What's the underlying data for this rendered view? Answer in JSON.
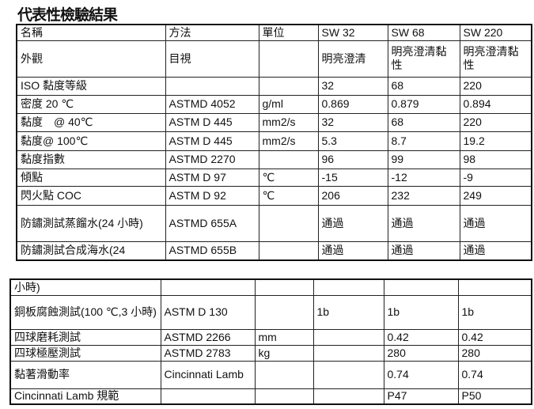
{
  "title": "代表性檢驗結果",
  "table1": {
    "header": [
      "名稱",
      "方法",
      "單位",
      "SW 32",
      "SW 68",
      "SW 220"
    ],
    "rows": [
      [
        "外觀",
        "目視",
        "",
        "明亮澄清",
        "明亮澄清黏性",
        "明亮澄清黏性"
      ],
      [
        "ISO 黏度等級",
        "",
        "",
        "32",
        "68",
        "220"
      ],
      [
        "密度 20 ℃",
        "ASTMD 4052",
        "g/ml",
        "0.869",
        "0.879",
        "0.894"
      ],
      [
        "黏度　@ 40℃",
        "ASTM D 445",
        "mm2/s",
        "32",
        "68",
        "220"
      ],
      [
        "黏度@ 100℃",
        "ASTM D 445",
        "mm2/s",
        "5.3",
        "8.7",
        "19.2"
      ],
      [
        "黏度指數",
        "ASTMD 2270",
        "",
        "96",
        "99",
        "98"
      ],
      [
        "傾點",
        "ASTM D 97",
        "℃",
        "-15",
        "-12",
        "-9"
      ],
      [
        "閃火點 COC",
        "ASTM D 92",
        "℃",
        "206",
        "232",
        "249"
      ],
      [
        "防鏽測試蒸餾水(24 小時)",
        "ASTMD 655A",
        "",
        "通過",
        "通過",
        "通過"
      ],
      [
        "防鏽測試合成海水(24",
        "ASTMD 655B",
        "",
        "通過",
        "通過",
        "通過"
      ]
    ]
  },
  "table2": {
    "rows": [
      [
        "小時)",
        "",
        "",
        "",
        "",
        ""
      ],
      [
        "銅板腐蝕測試(100 ℃,3 小時)",
        "ASTM D 130",
        "",
        "1b",
        "1b",
        "1b"
      ],
      [
        "四球磨耗測試",
        "ASTMD 2266",
        "mm",
        "",
        "0.42",
        "0.42"
      ],
      [
        "四球極壓測試",
        "ASTMD 2783",
        "kg",
        "",
        "280",
        "280"
      ],
      [
        "黏著滑動率",
        "Cincinnati Lamb",
        "",
        "",
        "0.74",
        "0.74"
      ],
      [
        "Cincinnati Lamb 規範",
        "",
        "",
        "",
        "P47",
        "P50"
      ]
    ]
  }
}
